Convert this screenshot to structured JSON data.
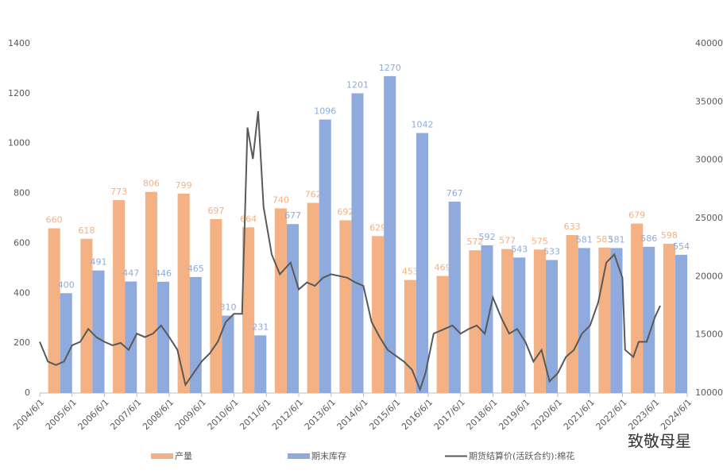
{
  "chart_data": {
    "type": "bar_line",
    "xticks": [
      "2004/6/1",
      "2005/6/1",
      "2006/6/1",
      "2007/6/1",
      "2008/6/1",
      "2009/6/1",
      "2010/6/1",
      "2011/6/1",
      "2012/6/1",
      "2013/6/1",
      "2014/6/1",
      "2015/6/1",
      "2016/6/1",
      "2017/6/1",
      "2018/6/1",
      "2019/6/1",
      "2020/6/1",
      "2021/6/1",
      "2022/6/1",
      "2023/6/1",
      "2024/6/1"
    ],
    "ylim": [
      0,
      1400
    ],
    "yticks": [
      0,
      200,
      400,
      600,
      800,
      1000,
      1200,
      1400
    ],
    "y2lim": [
      10000,
      40000
    ],
    "y2ticks": [
      10000,
      15000,
      20000,
      25000,
      30000,
      35000,
      40000
    ],
    "series": [
      {
        "name": "产量",
        "type": "bar",
        "color": "#f4b183",
        "values": [
          660,
          618,
          773,
          806,
          799,
          697,
          664,
          740,
          762,
          692,
          629,
          453,
          469,
          572,
          577,
          575,
          633,
          583,
          679,
          598
        ]
      },
      {
        "name": "期末库存",
        "type": "bar",
        "color": "#8faadc",
        "values": [
          400,
          491,
          447,
          446,
          465,
          310,
          231,
          677,
          1096,
          1201,
          1270,
          1042,
          767,
          592,
          543,
          533,
          581,
          581,
          586,
          554
        ]
      },
      {
        "name": "期货结算价(活跃合约):棉花",
        "type": "line",
        "axis": "y2",
        "color": "#595959",
        "x": [
          "2004/6/1",
          "2004/9/1",
          "2004/12/1",
          "2005/3/1",
          "2005/6/1",
          "2005/9/1",
          "2005/12/1",
          "2006/3/1",
          "2006/6/1",
          "2006/9/1",
          "2006/12/1",
          "2007/3/1",
          "2007/6/1",
          "2007/9/1",
          "2007/12/1",
          "2008/3/1",
          "2008/6/1",
          "2008/9/1",
          "2008/12/1",
          "2009/3/1",
          "2009/6/1",
          "2009/9/1",
          "2009/12/1",
          "2010/3/1",
          "2010/6/1",
          "2010/9/1",
          "2010/11/1",
          "2011/1/1",
          "2011/3/1",
          "2011/5/1",
          "2011/8/1",
          "2011/11/1",
          "2012/3/1",
          "2012/6/1",
          "2012/9/1",
          "2012/12/1",
          "2013/3/1",
          "2013/6/1",
          "2013/12/1",
          "2014/3/1",
          "2014/6/1",
          "2014/9/1",
          "2014/12/1",
          "2015/3/1",
          "2015/6/1",
          "2015/9/1",
          "2015/12/1",
          "2016/3/1",
          "2016/5/1",
          "2016/8/1",
          "2016/12/1",
          "2017/3/1",
          "2017/6/1",
          "2017/9/1",
          "2017/12/1",
          "2018/3/1",
          "2018/6/1",
          "2018/9/1",
          "2018/12/1",
          "2019/3/1",
          "2019/6/1",
          "2019/9/1",
          "2019/12/1",
          "2020/3/1",
          "2020/6/1",
          "2020/9/1",
          "2020/12/1",
          "2021/3/1",
          "2021/6/1",
          "2021/9/1",
          "2021/12/1",
          "2022/3/1",
          "2022/6/1",
          "2022/7/1",
          "2022/10/1",
          "2022/12/1",
          "2023/3/1",
          "2023/6/1",
          "2023/8/1"
        ],
        "values": [
          14400,
          12700,
          12400,
          12700,
          14100,
          14400,
          15500,
          14800,
          14400,
          14100,
          14300,
          13700,
          15100,
          14800,
          15100,
          15800,
          14800,
          13700,
          10700,
          11700,
          12700,
          13400,
          14400,
          16100,
          16800,
          16800,
          32800,
          30100,
          34200,
          26000,
          21900,
          20200,
          21200,
          18900,
          19500,
          19200,
          19900,
          20200,
          19900,
          19500,
          19200,
          16100,
          14800,
          13700,
          13200,
          12700,
          12000,
          10300,
          11700,
          15100,
          15500,
          15800,
          15100,
          15500,
          15800,
          15100,
          18200,
          16500,
          15100,
          15500,
          14400,
          12700,
          13700,
          11000,
          11700,
          13100,
          13700,
          15100,
          15800,
          17800,
          21200,
          21900,
          19900,
          13700,
          13100,
          14400,
          14400,
          16500,
          17500
        ]
      }
    ],
    "watermark": "致敬母星"
  }
}
